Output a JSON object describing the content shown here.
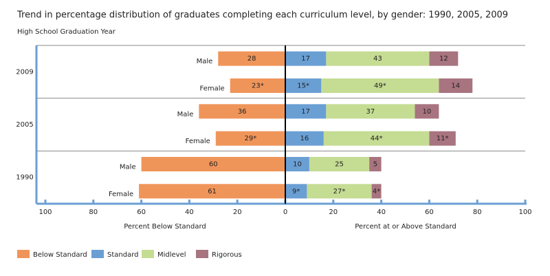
{
  "chart_data": {
    "type": "diverging-bar",
    "title": "Trend in percentage distribution of graduates completing each curriculum level, by gender: 1990, 2005, 2009",
    "y_label": "High School Graduation Year",
    "left_x_label": "Percent Below Standard",
    "right_x_label": "Percent at or Above Standard",
    "groups": [
      {
        "name": "2009",
        "categories": [
          "Male",
          "Female"
        ]
      },
      {
        "name": "2005",
        "categories": [
          "Male",
          "Female"
        ]
      },
      {
        "name": "1990",
        "categories": [
          "Male",
          "Female"
        ]
      }
    ],
    "left_xlim": [
      100,
      0
    ],
    "left_xticks": [
      100,
      80,
      60,
      40,
      20
    ],
    "right_xlim": [
      0,
      100
    ],
    "right_xticks": [
      0,
      20,
      40,
      60,
      80,
      100
    ],
    "series": [
      {
        "name": "Below Standard",
        "side": "left",
        "color": "#f0955a",
        "values": [
          28,
          23,
          36,
          29,
          60,
          61
        ],
        "value_labels": [
          "28",
          "23*",
          "36",
          "29*",
          "60",
          "61"
        ]
      },
      {
        "name": "Standard",
        "side": "right",
        "color": "#6a9fd4",
        "values": [
          17,
          15,
          17,
          16,
          10,
          9
        ],
        "value_labels": [
          "17",
          "15*",
          "17",
          "16",
          "10",
          "9*"
        ]
      },
      {
        "name": "Midlevel",
        "side": "right",
        "color": "#c5dc93",
        "values": [
          43,
          49,
          37,
          44,
          25,
          27
        ],
        "value_labels": [
          "43",
          "49*",
          "37",
          "44*",
          "25",
          "27*"
        ]
      },
      {
        "name": "Rigorous",
        "side": "right",
        "color": "#a87480",
        "values": [
          12,
          14,
          10,
          11,
          5,
          4
        ],
        "value_labels": [
          "12",
          "14",
          "10",
          "11*",
          "5",
          "4*"
        ]
      }
    ]
  }
}
